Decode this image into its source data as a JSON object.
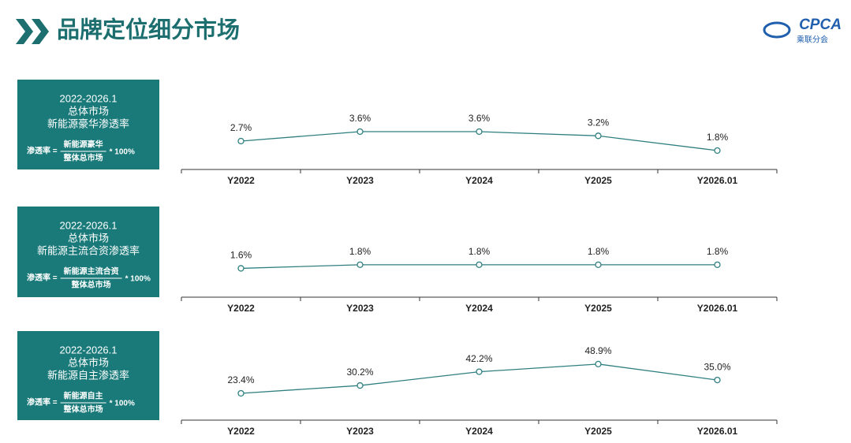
{
  "header": {
    "title": "品牌定位细分市场",
    "logo": "CPCA",
    "logo_sub": "乘联分会"
  },
  "chart_data": [
    {
      "type": "line",
      "title": "2022-2026.1",
      "subtitle": "总体市场",
      "metric": "新能源豪华渗透率",
      "formula": {
        "lhs": "渗透率 =",
        "numerator": "新能源豪华",
        "denominator": "整体总市场",
        "rhs": "* 100%"
      },
      "categories": [
        "Y2022",
        "Y2023",
        "Y2024",
        "Y2025",
        "Y2026.01"
      ],
      "values": [
        2.7,
        3.6,
        3.6,
        3.2,
        1.8
      ],
      "value_labels": [
        "2.7%",
        "3.6%",
        "3.6%",
        "3.2%",
        "1.8%"
      ],
      "color": "#2f7f80",
      "ylim": [
        0,
        6
      ]
    },
    {
      "type": "line",
      "title": "2022-2026.1",
      "subtitle": "总体市场",
      "metric": "新能源主流合资渗透率",
      "formula": {
        "lhs": "渗透率 =",
        "numerator": "新能源主流合资",
        "denominator": "整体总市场",
        "rhs": "* 100%"
      },
      "categories": [
        "Y2022",
        "Y2023",
        "Y2024",
        "Y2025",
        "Y2026.01"
      ],
      "values": [
        1.6,
        1.8,
        1.8,
        1.8,
        1.8
      ],
      "value_labels": [
        "1.6%",
        "1.8%",
        "1.8%",
        "1.8%",
        "1.8%"
      ],
      "color": "#2f7f80",
      "ylim": [
        0,
        3.5
      ]
    },
    {
      "type": "line",
      "title": "2022-2026.1",
      "subtitle": "总体市场",
      "metric": "新能源自主渗透率",
      "formula": {
        "lhs": "渗透率 =",
        "numerator": "新能源自主",
        "denominator": "整体总市场",
        "rhs": "* 100%"
      },
      "categories": [
        "Y2022",
        "Y2023",
        "Y2024",
        "Y2025",
        "Y2026.01"
      ],
      "values": [
        23.4,
        30.2,
        42.2,
        48.9,
        35.0
      ],
      "value_labels": [
        "23.4%",
        "30.2%",
        "42.2%",
        "48.9%",
        "35.0%"
      ],
      "color": "#2f7f80",
      "ylim": [
        0,
        55
      ]
    }
  ]
}
